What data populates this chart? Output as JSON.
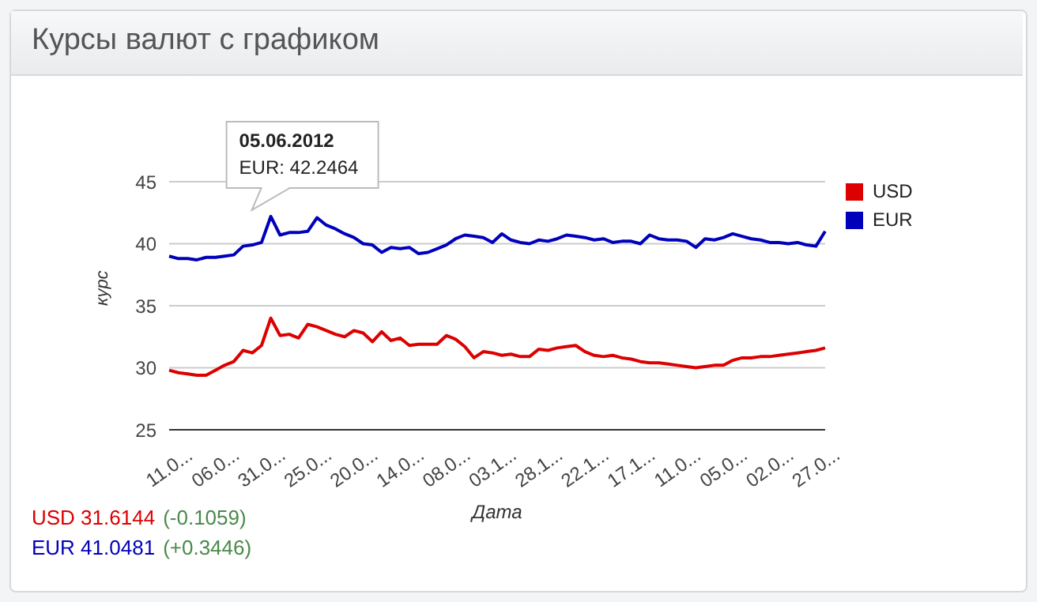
{
  "chart_data": {
    "type": "line",
    "title": "Курсы валют с графиком",
    "xlabel": "Дата",
    "ylabel": "курс",
    "categories": [
      "11.0...",
      null,
      null,
      null,
      null,
      "06.0...",
      null,
      null,
      null,
      null,
      "31.0...",
      null,
      null,
      null,
      null,
      "25.0...",
      null,
      null,
      null,
      null,
      "20.0...",
      null,
      null,
      null,
      null,
      "14.0...",
      null,
      null,
      null,
      null,
      "08.0...",
      null,
      null,
      null,
      null,
      "03.1...",
      null,
      null,
      null,
      null,
      "28.1...",
      null,
      null,
      null,
      null,
      "22.1...",
      null,
      null,
      null,
      null,
      "17.1...",
      null,
      null,
      null,
      null,
      "11.0...",
      null,
      null,
      null,
      null,
      "05.0...",
      null,
      null,
      null,
      null,
      "02.0...",
      null,
      null,
      null,
      null,
      "27.0...",
      null
    ],
    "series": [
      {
        "name": "USD",
        "color": "#dd0000",
        "values": [
          29.8,
          29.6,
          29.5,
          29.4,
          29.4,
          29.8,
          30.2,
          30.5,
          31.4,
          31.2,
          31.8,
          34.0,
          32.6,
          32.7,
          32.4,
          33.5,
          33.3,
          33.0,
          32.7,
          32.5,
          33.0,
          32.8,
          32.1,
          32.9,
          32.2,
          32.4,
          31.8,
          31.9,
          31.9,
          31.9,
          32.6,
          32.3,
          31.7,
          30.8,
          31.3,
          31.2,
          31.0,
          31.1,
          30.9,
          30.9,
          31.5,
          31.4,
          31.6,
          31.7,
          31.8,
          31.3,
          31.0,
          30.9,
          31.0,
          30.8,
          30.7,
          30.5,
          30.4,
          30.4,
          30.3,
          30.2,
          30.1,
          30.0,
          30.1,
          30.2,
          30.2,
          30.6,
          30.8,
          30.8,
          30.9,
          30.9,
          31.0,
          31.1,
          31.2,
          31.3,
          31.4,
          31.6
        ]
      },
      {
        "name": "EUR",
        "color": "#0000bb",
        "values": [
          39.0,
          38.8,
          38.8,
          38.7,
          38.9,
          38.9,
          39.0,
          39.1,
          39.8,
          39.9,
          40.1,
          42.2,
          40.7,
          40.9,
          40.9,
          41.0,
          42.1,
          41.5,
          41.2,
          40.8,
          40.5,
          40.0,
          39.9,
          39.3,
          39.7,
          39.6,
          39.7,
          39.2,
          39.3,
          39.6,
          39.9,
          40.4,
          40.7,
          40.6,
          40.5,
          40.1,
          40.8,
          40.3,
          40.1,
          40.0,
          40.3,
          40.2,
          40.4,
          40.7,
          40.6,
          40.5,
          40.3,
          40.4,
          40.1,
          40.2,
          40.2,
          40.0,
          40.7,
          40.4,
          40.3,
          40.3,
          40.2,
          39.7,
          40.4,
          40.3,
          40.5,
          40.8,
          40.6,
          40.4,
          40.3,
          40.1,
          40.1,
          40.0,
          40.1,
          39.9,
          39.8,
          41.0
        ]
      }
    ],
    "ylim": [
      25,
      45
    ],
    "yticks": [
      25,
      30,
      35,
      40,
      45
    ],
    "grid": "y",
    "legend": "right",
    "marker": "none",
    "line_style": "solid",
    "annotations": [
      "05.06.2012\nEUR: 42.2464",
      "USD 31.6144",
      "(-0.1059)",
      "EUR 41.0481",
      "(+0.3446)"
    ]
  }
}
